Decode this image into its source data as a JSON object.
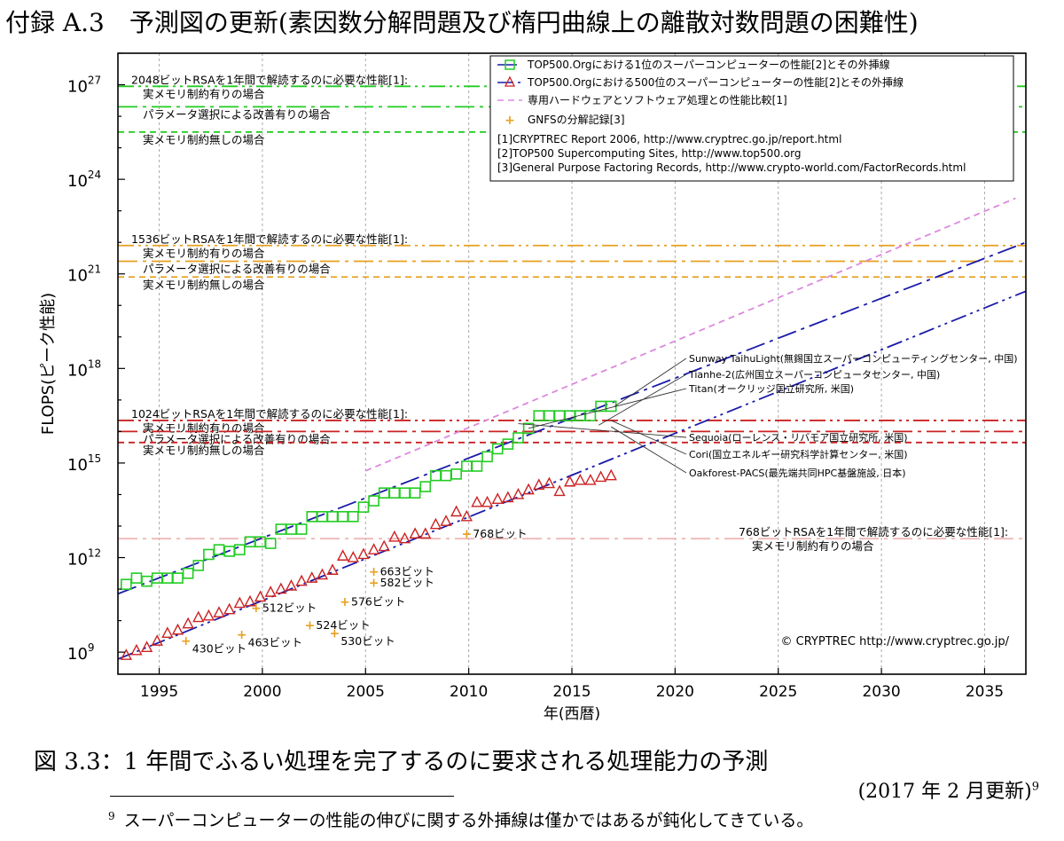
{
  "doc": {
    "title": "付録 A.3　予測図の更新(素因数分解問題及び楕円曲線上の離散対数問題の困難性)",
    "caption": "図 3.3：1 年間でふるい処理を完了するのに要求される処理能力の予測",
    "update_note": "(2017 年 2 月更新)",
    "footnote_mark": "9",
    "footnote_text": "スーパーコンピューターの性能の伸びに関する外挿線は僅かではあるが鈍化してきている。"
  },
  "colors": {
    "top1": "#22cc22",
    "top500": "#cc2222",
    "extrap": "#1a1aaa",
    "special_hw": "#dd88dd",
    "gnfs": "#e8a020",
    "rsa2048": "#22cc22",
    "rsa1536": "#e8a020",
    "rsa1024": "#cc2222",
    "rsa768": "#f0b8b8",
    "grid": "#aaaaaa"
  },
  "chart_data": {
    "type": "scatter",
    "xlabel": "年(西暦)",
    "ylabel": "FLOPS(ピーク性能)",
    "xlim": [
      1993,
      2037
    ],
    "ylim_log10": [
      8.3,
      28.0
    ],
    "log_scale_y": true,
    "grid": true,
    "x_ticks": [
      1995,
      2000,
      2005,
      2010,
      2015,
      2020,
      2025,
      2030,
      2035
    ],
    "y_ticks_log10": [
      9,
      12,
      15,
      18,
      21,
      24,
      27
    ],
    "y_tick_base": "10",
    "legend_position": "top-right",
    "legend": {
      "top1": "TOP500.Orgにおける1位のスーパーコンピューターの性能[2]とその外挿線",
      "top500": "TOP500.Orgにおける500位のスーパーコンピューターの性能[2]とその外挿線",
      "special_hw": "専用ハードウェアとソフトウェア処理との性能比較[1]",
      "gnfs": "GNFSの分解記録[3]",
      "refs": [
        "[1]CRYPTREC Report 2006, http://www.cryptrec.go.jp/report.html",
        "[2]TOP500 Supercomputing Sites, http://www.top500.org",
        "[3]General Purpose Factoring Records, http://www.crypto-world.com/FactorRecords.html"
      ]
    },
    "series": [
      {
        "key": "top1",
        "marker": "square",
        "x": [
          1993.4,
          1993.9,
          1994.4,
          1994.9,
          1995.4,
          1995.9,
          1996.4,
          1996.9,
          1997.4,
          1997.9,
          1998.4,
          1998.9,
          1999.4,
          1999.9,
          2000.4,
          2000.9,
          2001.4,
          2001.9,
          2002.4,
          2002.9,
          2003.4,
          2003.9,
          2004.4,
          2004.9,
          2005.4,
          2005.9,
          2006.4,
          2006.9,
          2007.4,
          2007.9,
          2008.4,
          2008.9,
          2009.4,
          2009.9,
          2010.4,
          2010.9,
          2011.4,
          2011.9,
          2012.4,
          2012.9,
          2013.4,
          2013.9,
          2014.4,
          2014.9,
          2015.4,
          2015.9,
          2016.4,
          2016.9
        ],
        "log10_flops": [
          11.15,
          11.35,
          11.25,
          11.35,
          11.35,
          11.35,
          11.5,
          11.75,
          12.1,
          12.25,
          12.2,
          12.25,
          12.5,
          12.5,
          12.45,
          12.9,
          12.9,
          12.9,
          13.3,
          13.3,
          13.3,
          13.3,
          13.3,
          13.6,
          13.8,
          14.05,
          14.05,
          14.05,
          14.05,
          14.25,
          14.6,
          14.6,
          14.65,
          14.9,
          14.9,
          15.2,
          15.45,
          15.6,
          15.8,
          16.1,
          16.5,
          16.5,
          16.5,
          16.5,
          16.5,
          16.5,
          16.8,
          16.8
        ]
      },
      {
        "key": "top500",
        "marker": "triangle",
        "x": [
          1993.4,
          1993.9,
          1994.4,
          1994.9,
          1995.4,
          1995.9,
          1996.4,
          1996.9,
          1997.4,
          1997.9,
          1998.4,
          1998.9,
          1999.4,
          1999.9,
          2000.4,
          2000.9,
          2001.4,
          2001.9,
          2002.4,
          2002.9,
          2003.4,
          2003.9,
          2004.4,
          2004.9,
          2005.4,
          2005.9,
          2006.4,
          2006.9,
          2007.4,
          2007.9,
          2008.4,
          2008.9,
          2009.4,
          2009.9,
          2010.4,
          2010.9,
          2011.4,
          2011.9,
          2012.4,
          2012.9,
          2013.4,
          2013.9,
          2014.4,
          2014.9,
          2015.4,
          2015.9,
          2016.4,
          2016.9
        ],
        "log10_flops": [
          8.9,
          9.05,
          9.15,
          9.35,
          9.6,
          9.7,
          9.9,
          10.1,
          10.15,
          10.25,
          10.35,
          10.55,
          10.6,
          10.75,
          10.9,
          11.0,
          11.1,
          11.25,
          11.35,
          11.45,
          11.6,
          12.05,
          12.0,
          12.1,
          12.25,
          12.35,
          12.65,
          12.6,
          12.75,
          12.75,
          13.05,
          13.15,
          13.45,
          13.3,
          13.75,
          13.75,
          13.85,
          13.9,
          14.0,
          14.15,
          14.3,
          14.35,
          14.1,
          14.4,
          14.45,
          14.45,
          14.55,
          14.6
        ]
      }
    ],
    "extrapolation_lines": [
      {
        "key": "top1",
        "style": "dash-dot",
        "x": [
          1993.0,
          2037.0
        ],
        "log10_flops": [
          10.85,
          22.0
        ]
      },
      {
        "key": "top500",
        "style": "dash-dot-dot",
        "x": [
          1993.0,
          2037.0
        ],
        "log10_flops": [
          8.78,
          20.45
        ]
      },
      {
        "key": "special_hw",
        "style": "dashed",
        "x": [
          2005.0,
          2036.5
        ],
        "log10_flops": [
          14.75,
          23.4
        ]
      }
    ],
    "gnfs_records": [
      {
        "x": 1996.3,
        "log10_flops": 9.35,
        "label": "430ビット"
      },
      {
        "x": 1999.0,
        "log10_flops": 9.55,
        "label": "463ビット"
      },
      {
        "x": 1999.7,
        "log10_flops": 10.4,
        "label": "512ビット"
      },
      {
        "x": 2002.3,
        "log10_flops": 9.85,
        "label": "524ビット"
      },
      {
        "x": 2003.5,
        "log10_flops": 9.6,
        "label": "530ビット"
      },
      {
        "x": 2004.0,
        "log10_flops": 10.6,
        "label": "576ビット"
      },
      {
        "x": 2005.4,
        "log10_flops": 11.2,
        "label": "582ビット"
      },
      {
        "x": 2005.4,
        "log10_flops": 11.55,
        "label": "663ビット"
      },
      {
        "x": 2009.9,
        "log10_flops": 12.75,
        "label": "768ビット"
      }
    ],
    "thresholds": [
      {
        "group": "rsa2048",
        "log10_flops": 26.95,
        "style": "dash-dot-dot",
        "header": "2048ビットRSAを1年間で解読するのに必要な性能[1]:",
        "label": "実メモリ制約有りの場合"
      },
      {
        "group": "rsa2048",
        "log10_flops": 26.3,
        "style": "dash-dot",
        "header": "",
        "label": "パラメータ選択による改善有りの場合"
      },
      {
        "group": "rsa2048",
        "log10_flops": 25.5,
        "style": "dashed",
        "header": "",
        "label": "実メモリ制約無しの場合"
      },
      {
        "group": "rsa1536",
        "log10_flops": 21.9,
        "style": "dash-dot-dot",
        "header": "1536ビットRSAを1年間で解読するのに必要な性能[1]:",
        "label": "実メモリ制約有りの場合"
      },
      {
        "group": "rsa1536",
        "log10_flops": 21.4,
        "style": "dash-dot",
        "header": "",
        "label": "パラメータ選択による改善有りの場合"
      },
      {
        "group": "rsa1536",
        "log10_flops": 20.9,
        "style": "dashed",
        "header": "",
        "label": "実メモリ制約無しの場合"
      },
      {
        "group": "rsa1024",
        "log10_flops": 16.35,
        "style": "dash-dot-dot",
        "header": "1024ビットRSAを1年間で解読するのに必要な性能[1]:",
        "label": "実メモリ制約有りの場合"
      },
      {
        "group": "rsa1024",
        "log10_flops": 16.0,
        "style": "dash-dot",
        "header": "",
        "label": "パラメータ選択による改善有りの場合"
      },
      {
        "group": "rsa1024",
        "log10_flops": 15.65,
        "style": "dashed",
        "header": "",
        "label": "実メモリ制約無しの場合"
      },
      {
        "group": "rsa768",
        "log10_flops": 12.6,
        "style": "dash-dot",
        "header": "768ビットRSAを1年間で解読するのに必要な性能[1]:",
        "label": "実メモリ制約有りの場合"
      }
    ],
    "annotations": [
      {
        "text": "Sunway TaihuLight(無錫国立スーパーコンピューティングセンター, 中国)",
        "x": 2016.9,
        "log10_flops": 16.8
      },
      {
        "text": "Tianhe-2(広州国立スーパーコンピュータセンター, 中国)",
        "x": 2016.3,
        "log10_flops": 16.2
      },
      {
        "text": "Titan(オークリッジ国立研究所, 米国)",
        "x": 2012.9,
        "log10_flops": 16.1
      },
      {
        "text": "Sequoia(ローレンス・リバモア国立研究所, 米国)",
        "x": 2012.4,
        "log10_flops": 16.25
      },
      {
        "text": "Cori(国立エネルギー研究科学計算センター, 米国)",
        "x": 2016.9,
        "log10_flops": 16.35
      },
      {
        "text": "Oakforest-PACS(最先端共同HPC基盤施設, 日本)",
        "x": 2016.9,
        "log10_flops": 16.15
      }
    ],
    "credit": "© CRYPTREC http://www.cryptrec.go.jp/"
  }
}
